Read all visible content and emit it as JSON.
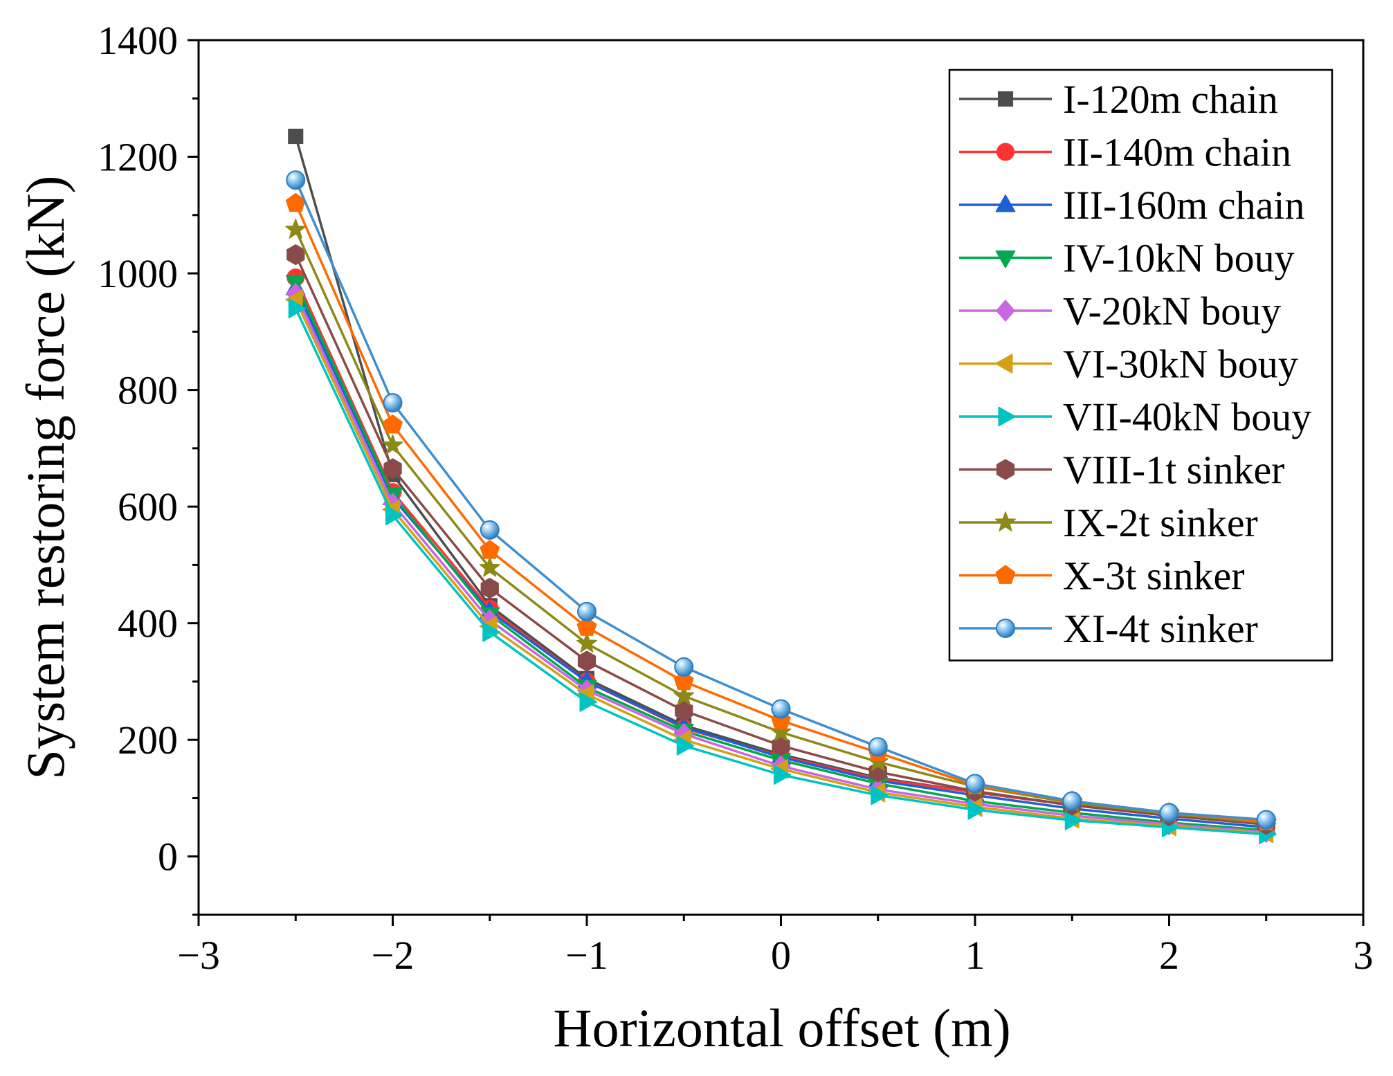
{
  "chart_data": {
    "type": "line",
    "xlabel": "Horizontal offset (m)",
    "ylabel": "System restoring force (kN)",
    "xlim": [
      -3,
      3
    ],
    "ylim": [
      -100,
      1400
    ],
    "xticks": [
      -3,
      -2,
      -1,
      0,
      1,
      2,
      3
    ],
    "xtick_labels": [
      "−3",
      "−2",
      "−1",
      "0",
      "1",
      "2",
      "3"
    ],
    "yticks": [
      0,
      200,
      400,
      600,
      800,
      1000,
      1200,
      1400
    ],
    "ytick_labels": [
      "0",
      "200",
      "400",
      "600",
      "800",
      "1000",
      "1200",
      "1400"
    ],
    "legend_position": "top-right",
    "x": [
      -2.5,
      -2.0,
      -1.5,
      -1.0,
      -0.5,
      0.0,
      0.5,
      1.0,
      1.5,
      2.0,
      2.5
    ],
    "series": [
      {
        "name": "I-120m chain",
        "color": "#4d4d4d",
        "marker": "square",
        "values": [
          1235,
          655,
          430,
          305,
          225,
          175,
          135,
          110,
          88,
          70,
          55
        ]
      },
      {
        "name": "II-140m chain",
        "color": "#ff3333",
        "marker": "circle",
        "values": [
          993,
          625,
          425,
          300,
          220,
          172,
          133,
          110,
          88,
          70,
          55
        ]
      },
      {
        "name": "III-160m chain",
        "color": "#1f5fd6",
        "marker": "triangle-up",
        "values": [
          975,
          615,
          420,
          300,
          222,
          170,
          130,
          105,
          82,
          65,
          50
        ]
      },
      {
        "name": "IV-10kN bouy",
        "color": "#00a84f",
        "marker": "triangle-down",
        "values": [
          985,
          620,
          415,
          290,
          215,
          165,
          125,
          95,
          75,
          58,
          45
        ]
      },
      {
        "name": "V-20kN bouy",
        "color": "#c966e0",
        "marker": "diamond",
        "values": [
          965,
          605,
          405,
          285,
          210,
          155,
          115,
          90,
          70,
          55,
          42
        ]
      },
      {
        "name": "VI-30kN bouy",
        "color": "#d4a017",
        "marker": "triangle-left",
        "values": [
          955,
          595,
          395,
          278,
          200,
          150,
          110,
          85,
          65,
          52,
          40
        ]
      },
      {
        "name": "VII-40kN bouy",
        "color": "#00c4c4",
        "marker": "triangle-right",
        "values": [
          940,
          585,
          385,
          265,
          190,
          140,
          105,
          80,
          62,
          50,
          38
        ]
      },
      {
        "name": "VIII-1t sinker",
        "color": "#8b4a4a",
        "marker": "hexagon",
        "values": [
          1032,
          665,
          460,
          335,
          250,
          190,
          145,
          112,
          88,
          70,
          55
        ]
      },
      {
        "name": "IX-2t sinker",
        "color": "#8c8a16",
        "marker": "star",
        "values": [
          1075,
          705,
          495,
          365,
          275,
          213,
          162,
          120,
          92,
          73,
          58
        ]
      },
      {
        "name": "X-3t sinker",
        "color": "#ff6a00",
        "marker": "pentagon",
        "values": [
          1120,
          740,
          525,
          393,
          300,
          233,
          178,
          122,
          95,
          75,
          60
        ]
      },
      {
        "name": "XI-4t sinker",
        "color": "#3e8fd0",
        "marker": "sphere",
        "values": [
          1160,
          778,
          560,
          420,
          325,
          253,
          188,
          125,
          95,
          75,
          63
        ]
      }
    ]
  }
}
